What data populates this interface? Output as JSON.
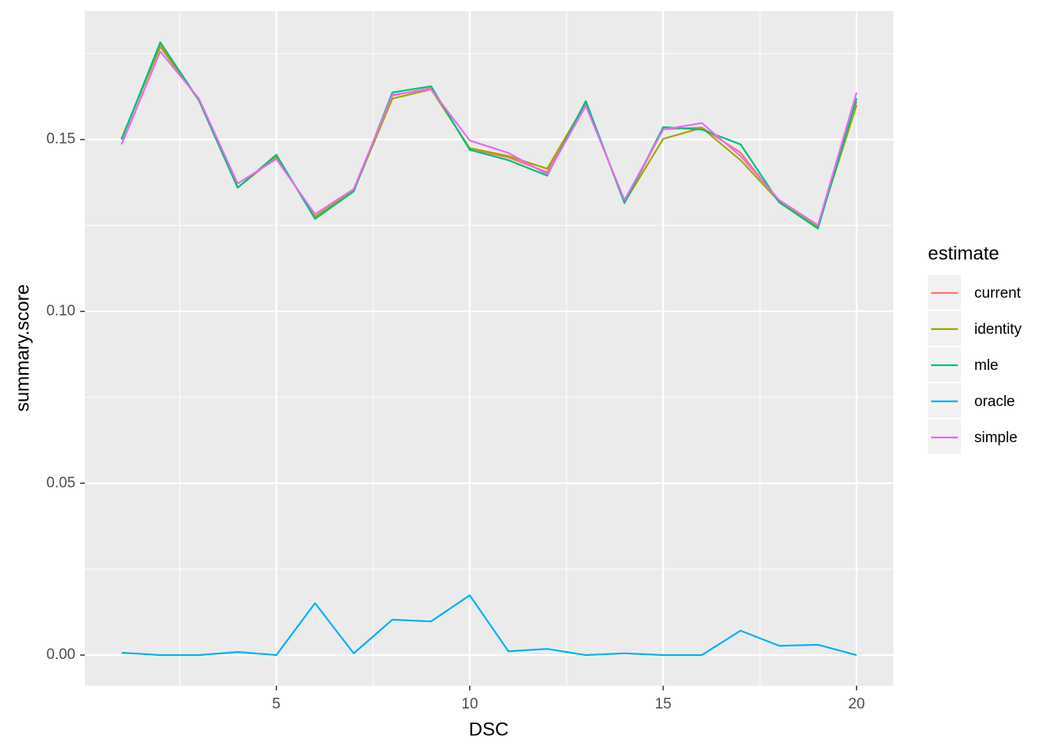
{
  "chart_data": {
    "type": "line",
    "x_label": "DSC",
    "y_label": "summary.score",
    "legend_title": "estimate",
    "x": [
      1,
      2,
      3,
      4,
      5,
      6,
      7,
      8,
      9,
      10,
      11,
      12,
      13,
      14,
      15,
      16,
      17,
      18,
      19,
      20
    ],
    "series": [
      {
        "name": "current",
        "color": "#F8766D",
        "values": [
          0.15,
          0.1775,
          0.1614,
          0.136,
          0.1453,
          0.1272,
          0.135,
          0.1628,
          0.165,
          0.1472,
          0.1448,
          0.1405,
          0.161,
          0.1316,
          0.153,
          0.1535,
          0.1462,
          0.1318,
          0.1245,
          0.161
        ]
      },
      {
        "name": "identity",
        "color": "#A3A500",
        "values": [
          0.1504,
          0.177,
          0.1614,
          0.136,
          0.145,
          0.1276,
          0.1351,
          0.1619,
          0.1646,
          0.1475,
          0.1452,
          0.1415,
          0.1607,
          0.1317,
          0.1502,
          0.1534,
          0.144,
          0.1319,
          0.1248,
          0.16
        ]
      },
      {
        "name": "mle",
        "color": "#00BF7D",
        "values": [
          0.15,
          0.1783,
          0.1614,
          0.136,
          0.1456,
          0.1269,
          0.1349,
          0.1637,
          0.1655,
          0.147,
          0.144,
          0.1395,
          0.1612,
          0.1315,
          0.1536,
          0.1529,
          0.1486,
          0.1317,
          0.1241,
          0.162
        ]
      },
      {
        "name": "oracle",
        "color": "#00B0F6",
        "values": [
          0.0007,
          0,
          0,
          0.0009,
          0,
          0.0151,
          0.0005,
          0.0103,
          0.0098,
          0.0174,
          0.0011,
          0.0018,
          0,
          0.0005,
          0,
          0,
          0.0071,
          0.0027,
          0.003,
          0
        ]
      },
      {
        "name": "simple",
        "color": "#E76BF3",
        "values": [
          0.1486,
          0.1756,
          0.1619,
          0.1372,
          0.1443,
          0.1283,
          0.1356,
          0.163,
          0.1646,
          0.1497,
          0.1461,
          0.1399,
          0.1598,
          0.1324,
          0.1529,
          0.1548,
          0.1452,
          0.1324,
          0.1251,
          0.1637
        ]
      }
    ],
    "xlim": [
      0.05,
      20.95
    ],
    "xticks": [
      5,
      10,
      15,
      20
    ],
    "x_minor_ticks": [
      2.5,
      7.5,
      12.5,
      17.5
    ],
    "ylim": [
      -0.0089,
      0.1874
    ],
    "yticks": [
      {
        "value": 0,
        "label": "0.00"
      },
      {
        "value": 0.05,
        "label": "0.05"
      },
      {
        "value": 0.1,
        "label": "0.10"
      },
      {
        "value": 0.15,
        "label": "0.15"
      }
    ],
    "y_minor_ticks": [
      0.025,
      0.075,
      0.125,
      0.175
    ],
    "grid": true,
    "legend_position": "right"
  }
}
